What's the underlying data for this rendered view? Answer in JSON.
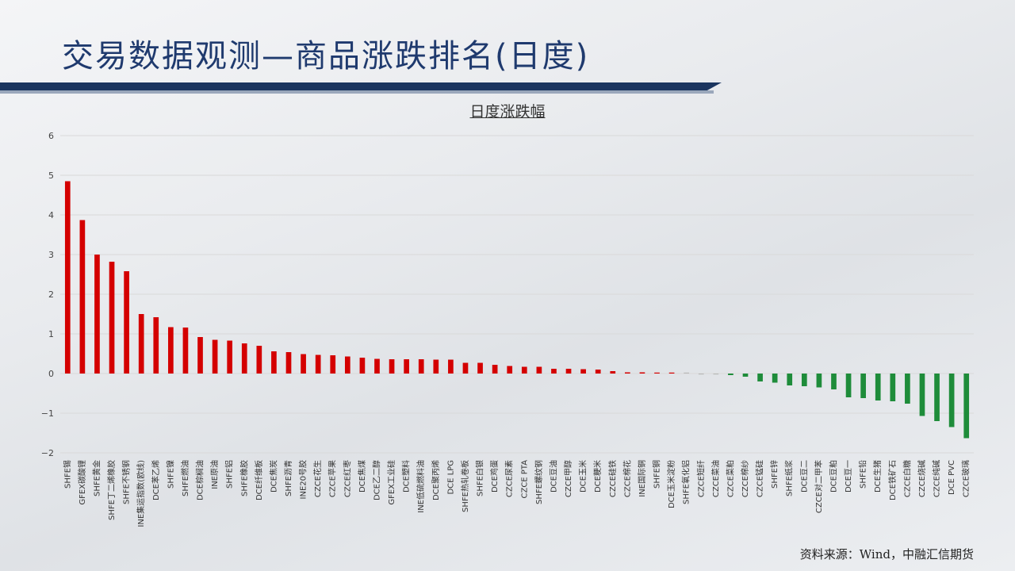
{
  "slide": {
    "title": "交易数据观测—商品涨跌排名(日度)",
    "source": "资料来源：Wind，中融汇信期货"
  },
  "colors": {
    "up": "#d40000",
    "down": "#1e8c3a",
    "flat": "#b8b8b8",
    "grid": "#d9d9d9",
    "title": "#1f3a6e"
  },
  "chart_data": {
    "type": "bar",
    "title": "日度涨跌幅",
    "xlabel": "",
    "ylabel": "",
    "ylim": [
      -2,
      6
    ],
    "yticks": [
      -2,
      -1,
      0,
      1,
      2,
      3,
      4,
      5,
      6
    ],
    "grid": true,
    "categories": [
      "SHFE锡",
      "GFEX碳酸锂",
      "SHFE黄金",
      "SHFE丁二烯橡胶",
      "SHFE不锈钢",
      "INE集运指数(欧线)",
      "DCE苯乙烯",
      "SHFE镍",
      "SHFE燃油",
      "DCE棕榈油",
      "INE原油",
      "SHFE铝",
      "SHFE橡胶",
      "DCE纤维板",
      "DCE焦炭",
      "SHFE沥青",
      "INE20号胶",
      "CZCE花生",
      "CZCE苹果",
      "CZCE红枣",
      "DCE焦煤",
      "DCE乙二醇",
      "GFEX工业硅",
      "DCE塑料",
      "INE低硫燃料油",
      "DCE聚丙烯",
      "DCE LPG",
      "SHFE热轧卷板",
      "SHFE白银",
      "DCE鸡蛋",
      "CZCE尿素",
      "CZCE PTA",
      "SHFE螺纹钢",
      "DCE豆油",
      "CZCE甲醇",
      "DCE玉米",
      "DCE粳米",
      "CZCE硅铁",
      "CZCE棉花",
      "INE国际铜",
      "SHFE铜",
      "DCE玉米淀粉",
      "SHFE氧化铝",
      "CZCE短纤",
      "CZCE菜油",
      "CZCE菜粕",
      "CZCE棉纱",
      "CZCE锰硅",
      "SHFE锌",
      "SHFE纸浆",
      "DCE豆二",
      "CZCE对二甲苯",
      "DCE豆粕",
      "DCE豆一",
      "SHFE铅",
      "DCE生猪",
      "DCE铁矿石",
      "CZCE白糖",
      "CZCE烧碱",
      "CZCE纯碱",
      "DCE PVC",
      "CZCE玻璃"
    ],
    "values": [
      4.85,
      3.87,
      3.0,
      2.82,
      2.58,
      1.5,
      1.42,
      1.17,
      1.16,
      0.92,
      0.85,
      0.83,
      0.76,
      0.7,
      0.56,
      0.54,
      0.49,
      0.47,
      0.46,
      0.43,
      0.4,
      0.37,
      0.36,
      0.36,
      0.36,
      0.35,
      0.35,
      0.27,
      0.27,
      0.22,
      0.19,
      0.17,
      0.17,
      0.12,
      0.12,
      0.11,
      0.1,
      0.06,
      0.03,
      0.03,
      0.02,
      0.02,
      0.01,
      -0.01,
      -0.01,
      -0.04,
      -0.08,
      -0.2,
      -0.23,
      -0.3,
      -0.32,
      -0.35,
      -0.4,
      -0.6,
      -0.62,
      -0.68,
      -0.7,
      -0.76,
      -1.07,
      -1.2,
      -1.35,
      -1.63
    ]
  }
}
